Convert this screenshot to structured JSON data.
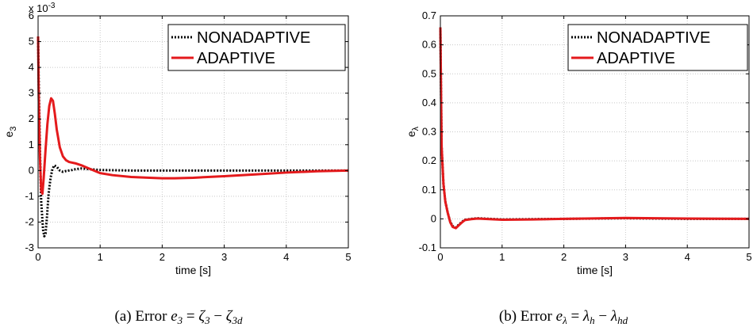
{
  "colors": {
    "nonadaptive": "#000000",
    "adaptive": "#e41a1c",
    "grid": "#c8c8c8"
  },
  "chart_data": [
    {
      "type": "line",
      "panel": "a",
      "caption": {
        "prefix": "(a) Error ",
        "e": "e",
        "e_sub": "3",
        "eq": " = ",
        "zeta": "ζ",
        "zeta_sub": "3",
        "minus": " − ",
        "zeta2": "ζ",
        "zeta2_sub": "3d"
      },
      "xlabel": "time [s]",
      "ylabel_main": "e",
      "ylabel_sub": "3",
      "exponent": {
        "base": "x 10",
        "power": "-3"
      },
      "xlim": [
        0,
        5
      ],
      "ylim": [
        -3,
        6
      ],
      "xticks": [
        0,
        1,
        2,
        3,
        4,
        5
      ],
      "yticks": [
        -3,
        -2,
        -1,
        0,
        1,
        2,
        3,
        4,
        5,
        6
      ],
      "grid": true,
      "legend_position": "top-right",
      "series": [
        {
          "name": "NONADAPTIVE",
          "style": "dotted",
          "x": [
            0,
            0.01,
            0.03,
            0.05,
            0.08,
            0.1,
            0.12,
            0.14,
            0.17,
            0.2,
            0.23,
            0.26,
            0.3,
            0.35,
            0.4,
            0.45,
            0.5,
            0.55,
            0.6,
            0.7,
            0.8,
            1.0,
            1.5,
            2,
            3,
            4,
            5
          ],
          "y": [
            5.2,
            3.5,
            0.8,
            -1.2,
            -2.3,
            -2.55,
            -2.45,
            -1.9,
            -0.9,
            -0.3,
            0.05,
            0.2,
            0.15,
            0.0,
            -0.05,
            -0.02,
            0.0,
            0.02,
            0.05,
            0.08,
            0.06,
            0.02,
            0.0,
            0.0,
            0.0,
            0.0,
            0.0
          ]
        },
        {
          "name": "ADAPTIVE",
          "style": "solid",
          "x": [
            0,
            0.01,
            0.03,
            0.05,
            0.07,
            0.09,
            0.12,
            0.15,
            0.18,
            0.21,
            0.24,
            0.27,
            0.3,
            0.35,
            0.4,
            0.45,
            0.5,
            0.6,
            0.7,
            0.8,
            0.9,
            1.0,
            1.2,
            1.5,
            1.8,
            2.0,
            2.2,
            2.5,
            3.0,
            3.5,
            4.0,
            4.5,
            5.0
          ],
          "y": [
            5.2,
            3.0,
            0.5,
            -0.8,
            -0.9,
            -0.3,
            0.8,
            1.8,
            2.5,
            2.8,
            2.7,
            2.2,
            1.6,
            0.9,
            0.55,
            0.4,
            0.33,
            0.28,
            0.2,
            0.1,
            0.0,
            -0.1,
            -0.18,
            -0.25,
            -0.28,
            -0.3,
            -0.3,
            -0.28,
            -0.22,
            -0.15,
            -0.08,
            -0.03,
            0.0
          ]
        }
      ]
    },
    {
      "type": "line",
      "panel": "b",
      "caption": {
        "prefix": "(b) Error ",
        "e": "e",
        "e_sub": "λ",
        "eq": " = ",
        "zeta": "λ",
        "zeta_sub": "h",
        "minus": " − ",
        "zeta2": "λ",
        "zeta2_sub": "hd"
      },
      "xlabel": "time [s]",
      "ylabel_main": "e",
      "ylabel_sub": "λ",
      "exponent": null,
      "xlim": [
        0,
        5
      ],
      "ylim": [
        -0.1,
        0.7
      ],
      "xticks": [
        0,
        1,
        2,
        3,
        4,
        5
      ],
      "yticks": [
        -0.1,
        0,
        0.1,
        0.2,
        0.3,
        0.4,
        0.5,
        0.6,
        0.7
      ],
      "grid": true,
      "legend_position": "top-right",
      "series": [
        {
          "name": "NONADAPTIVE",
          "style": "dotted",
          "x": [
            0,
            0.02,
            0.05,
            0.08,
            0.12,
            0.16,
            0.2,
            0.25,
            0.3,
            0.35,
            0.4,
            0.5,
            0.6,
            0.8,
            1.0,
            1.5,
            2.0,
            3.0,
            4.0,
            5.0
          ],
          "y": [
            0.66,
            0.25,
            0.12,
            0.06,
            0.02,
            -0.01,
            -0.025,
            -0.03,
            -0.02,
            -0.01,
            -0.003,
            0.0,
            0.002,
            0.0,
            -0.002,
            -0.001,
            0.0,
            0.002,
            0.0,
            0.0
          ]
        },
        {
          "name": "ADAPTIVE",
          "style": "solid",
          "x": [
            0,
            0.02,
            0.05,
            0.08,
            0.12,
            0.16,
            0.2,
            0.25,
            0.3,
            0.35,
            0.4,
            0.5,
            0.6,
            0.8,
            1.0,
            1.5,
            2.0,
            3.0,
            4.0,
            5.0
          ],
          "y": [
            0.66,
            0.25,
            0.12,
            0.06,
            0.02,
            -0.012,
            -0.028,
            -0.032,
            -0.022,
            -0.012,
            -0.004,
            -0.001,
            0.001,
            -0.001,
            -0.003,
            -0.002,
            0.0,
            0.003,
            0.001,
            0.0
          ]
        }
      ]
    }
  ]
}
